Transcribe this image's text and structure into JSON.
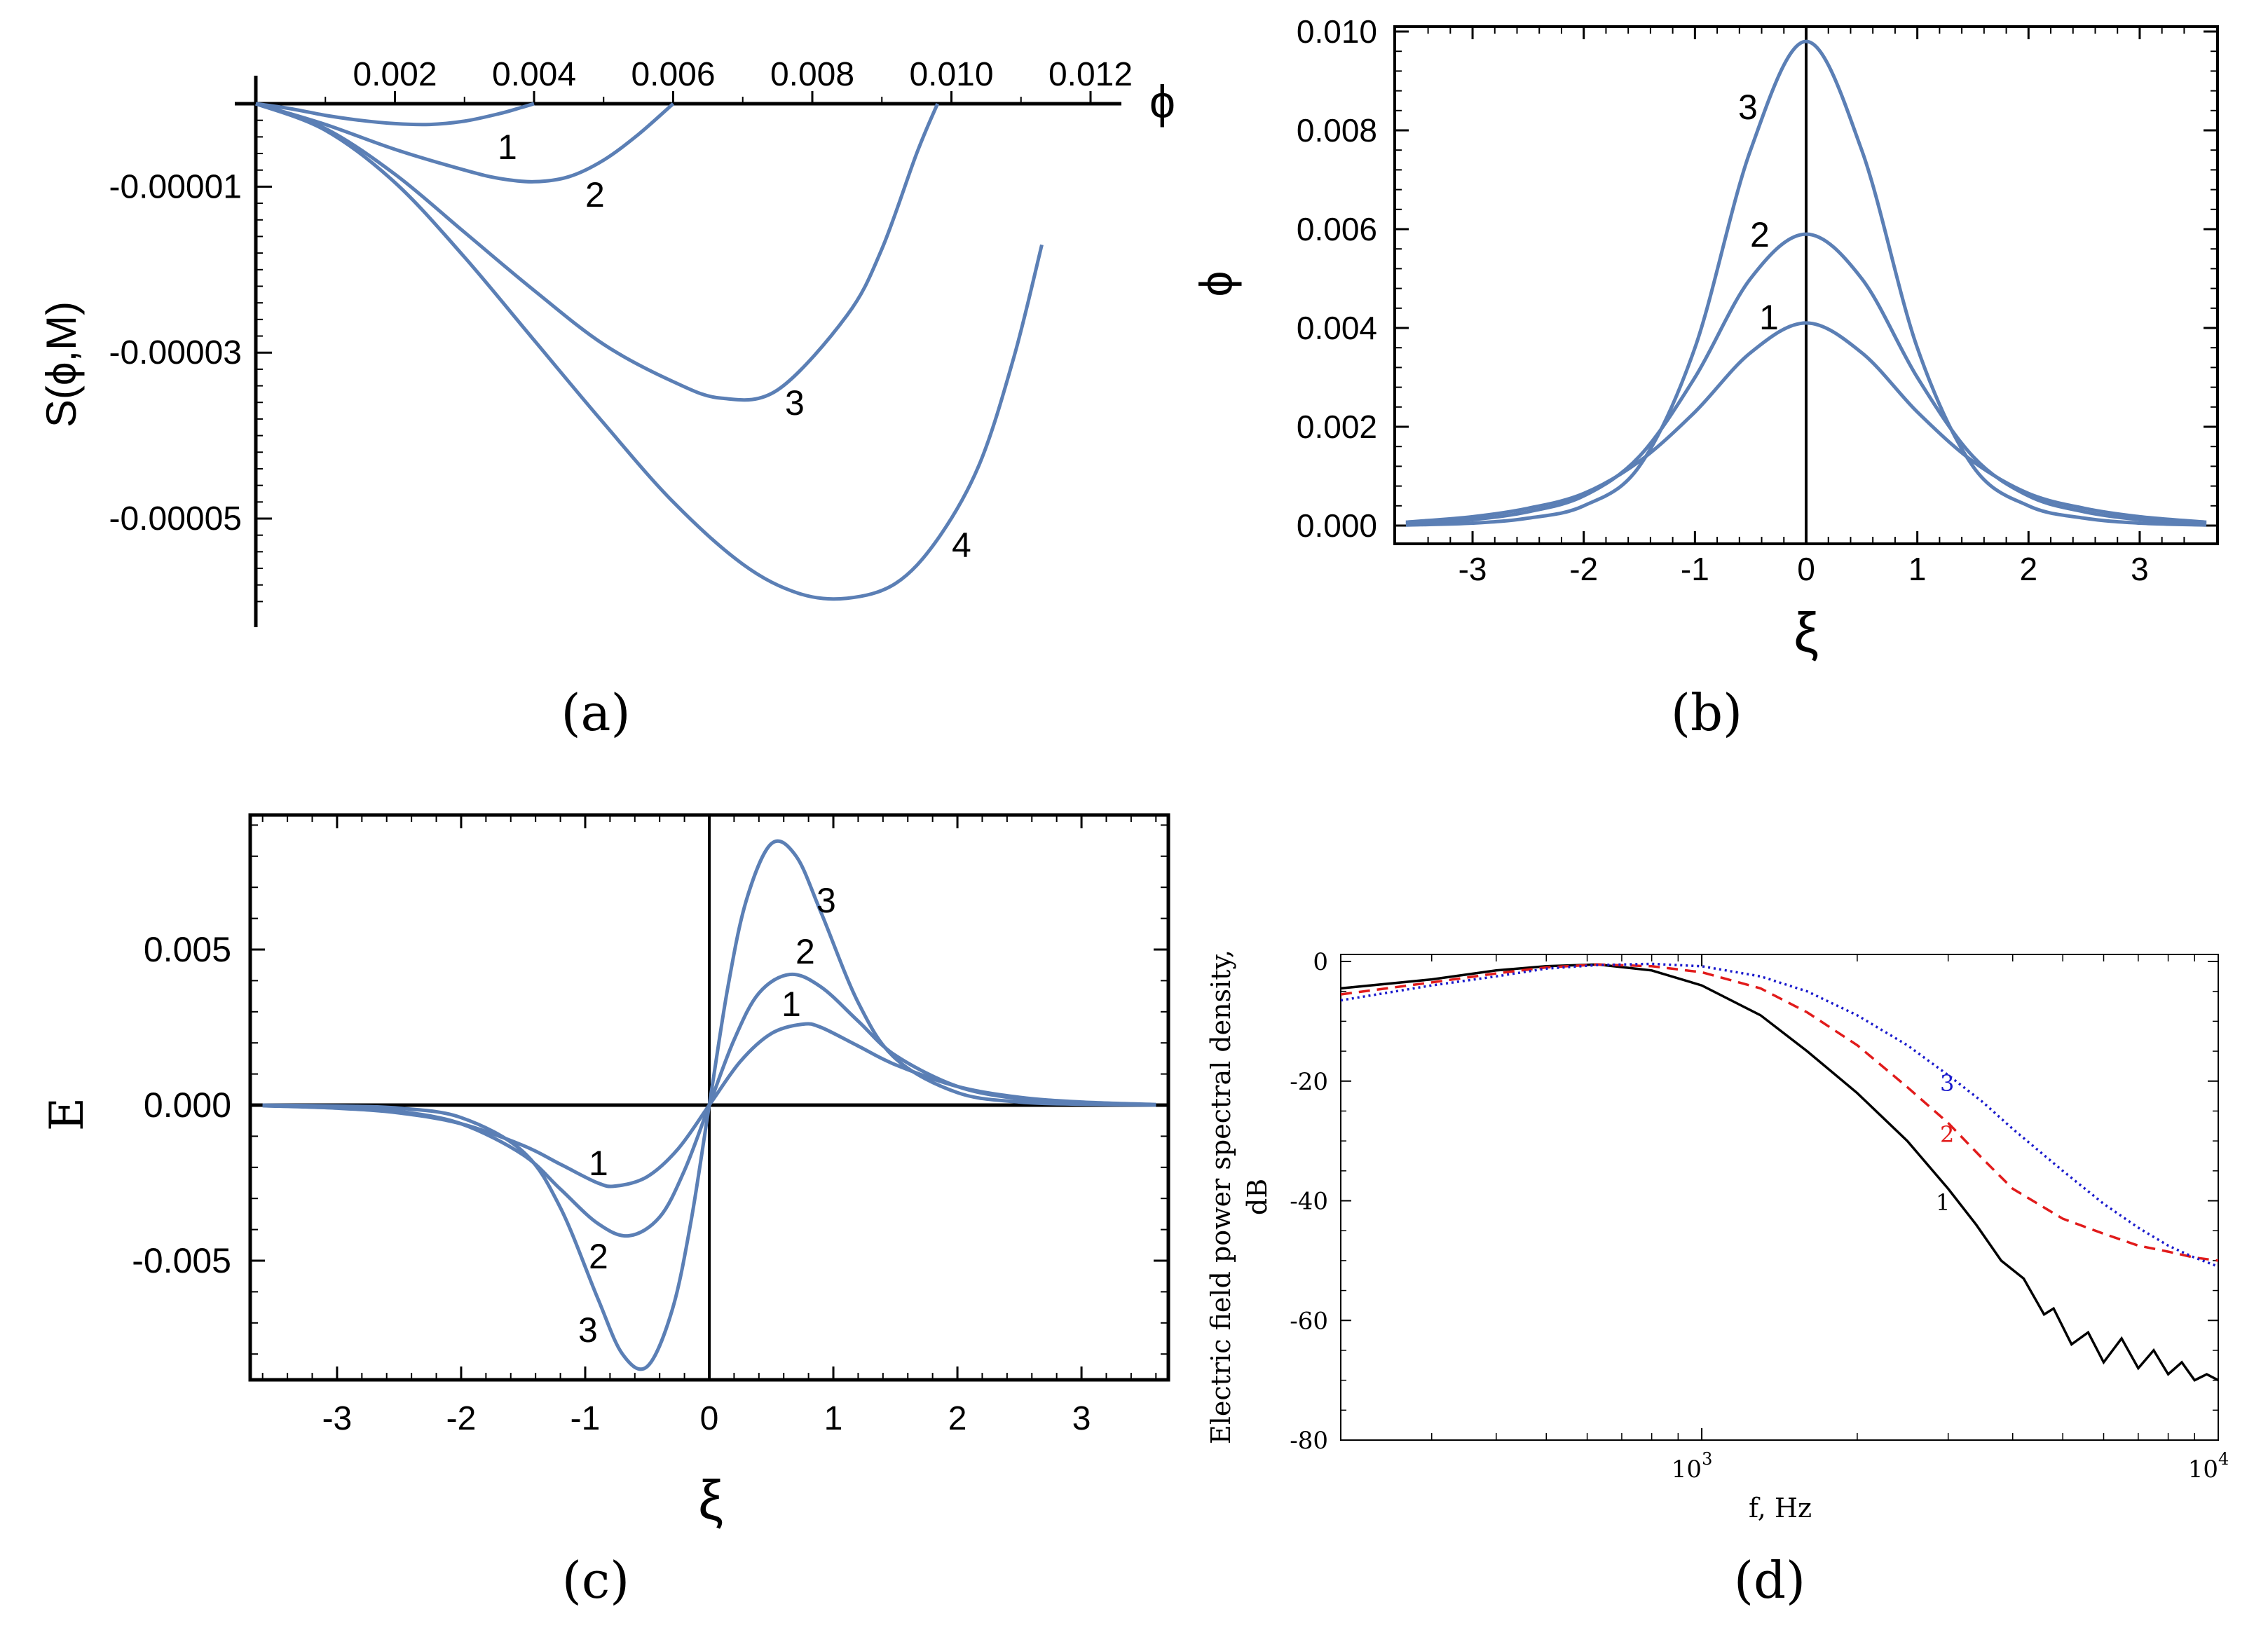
{
  "colors": {
    "curve": "#5b7fb5",
    "axis": "#000000",
    "red": "#e11b1b",
    "blue": "#1a1acc",
    "black": "#000000"
  },
  "chart_data": [
    {
      "id": "a",
      "caption": "(a)",
      "type": "line",
      "xlabel": "ϕ",
      "ylabel": "S(ϕ,M)",
      "xlim": [
        -0.0002,
        0.0124
      ],
      "ylim": [
        -6.2e-05,
        4.5e-06
      ],
      "x_ticks": [
        "0.002",
        "0.004",
        "0.006",
        "0.008",
        "0.010",
        "0.012"
      ],
      "x_tick_values": [
        0.002,
        0.004,
        0.006,
        0.008,
        0.01,
        0.012
      ],
      "y_ticks": [
        "-0.00001",
        "-0.00003",
        "-0.00005"
      ],
      "y_tick_values": [
        -1e-05,
        -3e-05,
        -5e-05
      ],
      "series": [
        {
          "name": "1",
          "x": [
            0,
            0.0005,
            0.001,
            0.0015,
            0.002,
            0.0025,
            0.003,
            0.0035,
            0.0038,
            0.004
          ],
          "y": [
            0,
            -6e-07,
            -1.4e-06,
            -2e-06,
            -2.4e-06,
            -2.5e-06,
            -2.1e-06,
            -1.2e-06,
            -5e-07,
            0
          ]
        },
        {
          "name": "2",
          "x": [
            0,
            0.001,
            0.002,
            0.003,
            0.0035,
            0.004,
            0.0045,
            0.005,
            0.0055,
            0.006
          ],
          "y": [
            0,
            -2.5e-06,
            -5.5e-06,
            -8e-06,
            -9e-06,
            -9.4e-06,
            -8.8e-06,
            -6.8e-06,
            -3.7e-06,
            0
          ]
        },
        {
          "name": "3",
          "x": [
            0,
            0.001,
            0.002,
            0.003,
            0.004,
            0.005,
            0.006,
            0.0067,
            0.0075,
            0.0085,
            0.009,
            0.0095,
            0.0098
          ],
          "y": [
            0,
            -3e-06,
            -8.5e-06,
            -1.55e-05,
            -2.25e-05,
            -2.9e-05,
            -3.35e-05,
            -3.55e-05,
            -3.45e-05,
            -2.55e-05,
            -1.75e-05,
            -6e-06,
            0
          ]
        },
        {
          "name": "4",
          "x": [
            0,
            0.001,
            0.002,
            0.003,
            0.004,
            0.005,
            0.006,
            0.007,
            0.0078,
            0.0085,
            0.0092,
            0.0098,
            0.0104,
            0.0109,
            0.0113
          ],
          "y": [
            0,
            -3.2e-06,
            -9.5e-06,
            -1.85e-05,
            -2.85e-05,
            -3.85e-05,
            -4.8e-05,
            -5.55e-05,
            -5.9e-05,
            -5.96e-05,
            -5.78e-05,
            -5.25e-05,
            -4.35e-05,
            -3.05e-05,
            -1.7e-05
          ]
        }
      ],
      "annotations": [
        "1",
        "2",
        "3",
        "4"
      ]
    },
    {
      "id": "b",
      "caption": "(b)",
      "type": "line",
      "xlabel": "ξ",
      "ylabel": "ϕ",
      "xlim": [
        -3.7,
        3.7
      ],
      "ylim": [
        -0.0003,
        0.0102
      ],
      "x_ticks": [
        "-3",
        "-2",
        "-1",
        "0",
        "1",
        "2",
        "3"
      ],
      "x_tick_values": [
        -3,
        -2,
        -1,
        0,
        1,
        2,
        3
      ],
      "y_ticks": [
        "0.000",
        "0.002",
        "0.004",
        "0.006",
        "0.008",
        "0.010"
      ],
      "y_tick_values": [
        0,
        0.002,
        0.004,
        0.006,
        0.008,
        0.01
      ],
      "series": [
        {
          "name": "1",
          "x": [
            -3.6,
            -3,
            -2.5,
            -2,
            -1.5,
            -1,
            -0.5,
            0,
            0.5,
            1,
            1.5,
            2,
            2.5,
            3,
            3.6
          ],
          "y": [
            7e-05,
            0.00018,
            0.00035,
            0.00065,
            0.0013,
            0.0023,
            0.0035,
            0.0041,
            0.0035,
            0.0023,
            0.0013,
            0.00065,
            0.00035,
            0.00018,
            7e-05
          ]
        },
        {
          "name": "2",
          "x": [
            -3.6,
            -3,
            -2.5,
            -2,
            -1.5,
            -1,
            -0.5,
            0,
            0.5,
            1,
            1.5,
            2,
            2.5,
            3,
            3.6
          ],
          "y": [
            4e-05,
            0.00012,
            0.00028,
            0.0006,
            0.0014,
            0.003,
            0.005,
            0.0059,
            0.005,
            0.003,
            0.0014,
            0.0006,
            0.00028,
            0.00012,
            4e-05
          ]
        },
        {
          "name": "3",
          "x": [
            -3.6,
            -3,
            -2.5,
            -2,
            -1.5,
            -1,
            -0.5,
            0,
            0.5,
            1,
            1.5,
            2,
            2.5,
            3,
            3.6
          ],
          "y": [
            1e-05,
            5e-05,
            0.00015,
            0.0004,
            0.0012,
            0.0036,
            0.0076,
            0.0098,
            0.0076,
            0.0036,
            0.0012,
            0.0004,
            0.00015,
            5e-05,
            1e-05
          ]
        }
      ],
      "annotations": [
        "1",
        "2",
        "3"
      ]
    },
    {
      "id": "c",
      "caption": "(c)",
      "type": "line",
      "xlabel": "ξ",
      "ylabel": "E",
      "xlim": [
        -3.7,
        3.7
      ],
      "ylim": [
        -0.0088,
        0.0093
      ],
      "x_ticks": [
        "-3",
        "-2",
        "-1",
        "0",
        "1",
        "2",
        "3"
      ],
      "x_tick_values": [
        -3,
        -2,
        -1,
        0,
        1,
        2,
        3
      ],
      "y_ticks": [
        "0.005",
        "0.000",
        "-0.005"
      ],
      "y_tick_values": [
        0.005,
        0,
        -0.005
      ],
      "series": [
        {
          "name": "1",
          "x": [
            -3.6,
            -3,
            -2.5,
            -2,
            -1.5,
            -1.2,
            -0.9,
            -0.75,
            -0.5,
            -0.25,
            0,
            0.25,
            0.5,
            0.75,
            0.9,
            1.2,
            1.5,
            2,
            2.5,
            3,
            3.6
          ],
          "y": [
            -2e-05,
            -0.0001,
            -0.00025,
            -0.0006,
            -0.0013,
            -0.0019,
            -0.0025,
            -0.0026,
            -0.0023,
            -0.0014,
            0,
            0.0014,
            0.0023,
            0.0026,
            0.0025,
            0.0019,
            0.0013,
            0.0006,
            0.00025,
            0.0001,
            2e-05
          ]
        },
        {
          "name": "2",
          "x": [
            -3.6,
            -3,
            -2.5,
            -2,
            -1.5,
            -1.2,
            -0.9,
            -0.65,
            -0.4,
            -0.2,
            0,
            0.2,
            0.4,
            0.65,
            0.9,
            1.2,
            1.5,
            2,
            2.5,
            3,
            3.6
          ],
          "y": [
            -1e-05,
            -6e-05,
            -0.0002,
            -0.0006,
            -0.0016,
            -0.0027,
            -0.0038,
            -0.0042,
            -0.0036,
            -0.0021,
            0,
            0.0021,
            0.0036,
            0.0042,
            0.0038,
            0.0027,
            0.0016,
            0.0006,
            0.0002,
            6e-05,
            1e-05
          ]
        },
        {
          "name": "3",
          "x": [
            -3.6,
            -3,
            -2.5,
            -2,
            -1.5,
            -1.2,
            -0.9,
            -0.7,
            -0.5,
            -0.3,
            -0.15,
            0,
            0.15,
            0.3,
            0.5,
            0.7,
            0.9,
            1.2,
            1.5,
            2,
            2.5,
            3,
            3.6
          ],
          "y": [
            0,
            -3e-05,
            -0.0001,
            -0.0004,
            -0.0015,
            -0.0033,
            -0.0062,
            -0.008,
            -0.0084,
            -0.0066,
            -0.0038,
            0,
            0.0038,
            0.0066,
            0.0084,
            0.008,
            0.0062,
            0.0033,
            0.0015,
            0.0004,
            0.0001,
            3e-05,
            0
          ]
        }
      ],
      "annotations": [
        "1",
        "2",
        "3",
        "1",
        "2",
        "3"
      ]
    },
    {
      "id": "d",
      "caption": "(d)",
      "type": "line",
      "xscale": "log",
      "xlabel": "f, Hz",
      "ylabel_line1": "Electric field power spectral density,",
      "ylabel_line2": "dB",
      "xlim": [
        200,
        10000
      ],
      "ylim": [
        -80,
        1
      ],
      "x_tick_base": "10",
      "x_tick_exponents": [
        "3",
        "4"
      ],
      "y_ticks": [
        "0",
        "-20",
        "-40",
        "-60",
        "-80"
      ],
      "y_tick_values": [
        0,
        -20,
        -40,
        -60,
        -80
      ],
      "series": [
        {
          "name": "1",
          "style": "solid",
          "x": [
            200,
            300,
            400,
            500,
            630,
            800,
            1000,
            1300,
            1600,
            2000,
            2500,
            3000,
            3400,
            3800,
            4200,
            4600,
            4800,
            5200,
            5600,
            6000,
            6500,
            7000,
            7500,
            8000,
            8500,
            9000,
            9500,
            10000
          ],
          "y": [
            -4.5,
            -3,
            -1.5,
            -0.8,
            -0.5,
            -1.5,
            -4,
            -9,
            -15,
            -22,
            -30,
            -38,
            -44,
            -50,
            -53,
            -59,
            -58,
            -64,
            -62,
            -67,
            -63,
            -68,
            -65,
            -69,
            -67,
            -70,
            -69,
            -70
          ]
        },
        {
          "name": "2",
          "style": "dashed",
          "x": [
            200,
            300,
            400,
            500,
            630,
            800,
            1000,
            1300,
            1600,
            2000,
            2500,
            3000,
            3500,
            4000,
            5000,
            6000,
            7000,
            8000,
            9000,
            10000
          ],
          "y": [
            -5.5,
            -3.5,
            -2,
            -1,
            -0.5,
            -0.8,
            -1.8,
            -4.5,
            -8.5,
            -14,
            -21,
            -27,
            -33,
            -38,
            -43,
            -45.5,
            -47.5,
            -48.5,
            -49.5,
            -50
          ]
        },
        {
          "name": "3",
          "style": "dotted",
          "x": [
            200,
            300,
            400,
            500,
            630,
            800,
            1000,
            1300,
            1600,
            2000,
            2500,
            3000,
            3500,
            4000,
            5000,
            6000,
            7000,
            8000,
            9000,
            10000
          ],
          "y": [
            -6.5,
            -4,
            -2.5,
            -1.2,
            -0.6,
            -0.4,
            -0.8,
            -2.5,
            -5,
            -9,
            -14,
            -19,
            -23.5,
            -28,
            -35,
            -40.5,
            -44.5,
            -47.5,
            -49.5,
            -51
          ]
        }
      ],
      "annotations": [
        "3",
        "2",
        "1"
      ]
    }
  ]
}
